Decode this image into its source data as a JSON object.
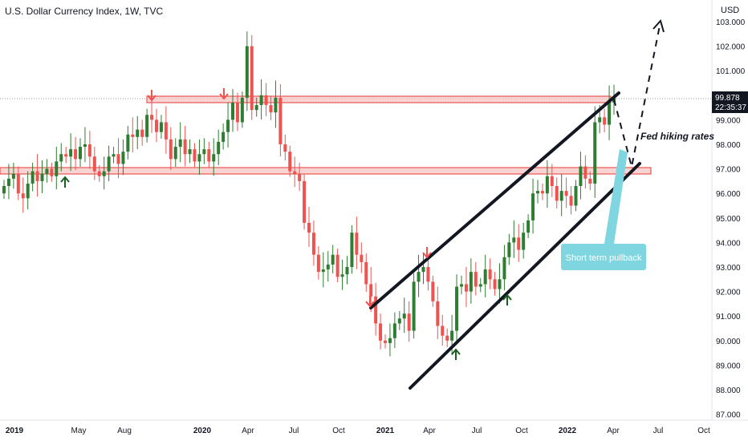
{
  "header": {
    "title": "U.S. Dollar Currency Index, 1W, TVC",
    "currency": "USD"
  },
  "price_label": {
    "value": "99.878",
    "countdown": "22:35:37"
  },
  "annotations": {
    "fed": "Fed hiking rates",
    "pullback": "Short term pullback"
  },
  "colors": {
    "up": "#2e7d32",
    "down": "#ef5350",
    "zone_fill": "#f8c4c4",
    "zone_stroke": "#e53935",
    "callout": "#7fd6e0",
    "price_tag": "#131722"
  },
  "chart_data": {
    "type": "candlestick",
    "title": "U.S. Dollar Currency Index, 1W, TVC",
    "ylabel": "USD",
    "ylim": [
      87,
      103.3
    ],
    "y_ticks": [
      "103.000",
      "102.000",
      "101.000",
      "100.000",
      "99.000",
      "98.000",
      "97.000",
      "96.000",
      "95.000",
      "94.000",
      "93.000",
      "92.000",
      "91.000",
      "90.000",
      "89.000",
      "88.000",
      "87.000"
    ],
    "x_ticks": [
      {
        "label": "2019",
        "bold": true
      },
      {
        "label": "May",
        "bold": false
      },
      {
        "label": "Aug",
        "bold": false
      },
      {
        "label": "2020",
        "bold": true
      },
      {
        "label": "Apr",
        "bold": false
      },
      {
        "label": "Jul",
        "bold": false
      },
      {
        "label": "Oct",
        "bold": false
      },
      {
        "label": "2021",
        "bold": true
      },
      {
        "label": "Apr",
        "bold": false
      },
      {
        "label": "Jul",
        "bold": false
      },
      {
        "label": "Oct",
        "bold": false
      },
      {
        "label": "2022",
        "bold": true
      },
      {
        "label": "Apr",
        "bold": false
      },
      {
        "label": "Jul",
        "bold": false
      },
      {
        "label": "Oct",
        "bold": false
      }
    ],
    "last_price": 99.878,
    "resistance_zone": [
      99.7,
      100.0
    ],
    "support_zone": [
      96.8,
      97.05
    ],
    "channel_upper": [
      [
        91.1,
        100.1
      ]
    ],
    "channel_lower": [
      [
        88.1,
        97.2
      ]
    ],
    "projected_path": [
      99.878,
      97.0,
      103.0
    ],
    "series_close": [
      96.3,
      96.6,
      96.8,
      96.0,
      95.8,
      96.4,
      96.9,
      96.5,
      96.8,
      97.0,
      96.7,
      97.3,
      97.6,
      97.5,
      97.8,
      97.4,
      97.9,
      98.0,
      97.5,
      96.9,
      96.7,
      96.9,
      97.5,
      97.6,
      97.2,
      97.7,
      98.4,
      98.3,
      98.6,
      98.3,
      99.2,
      99.0,
      98.5,
      98.9,
      98.2,
      97.4,
      97.9,
      98.2,
      97.6,
      97.8,
      97.3,
      97.6,
      97.8,
      97.3,
      97.6,
      98.1,
      98.5,
      99.0,
      99.7,
      98.9,
      99.9,
      102.0,
      99.4,
      99.6,
      100.0,
      99.6,
      99.3,
      99.9,
      98.0,
      97.7,
      96.9,
      96.8,
      96.5,
      94.8,
      94.4,
      93.5,
      92.8,
      92.9,
      93.1,
      93.5,
      92.6,
      92.7,
      93.0,
      94.4,
      93.5,
      93.2,
      92.3,
      91.8,
      90.7,
      90.0,
      89.9,
      90.1,
      90.7,
      90.9,
      91.1,
      90.4,
      92.4,
      92.8,
      93.0,
      92.4,
      91.6,
      90.6,
      90.2,
      90.0,
      90.4,
      92.2,
      92.3,
      92.0,
      92.8,
      92.2,
      92.3,
      92.9,
      92.5,
      92.1,
      92.5,
      93.4,
      94.0,
      94.2,
      93.7,
      94.4,
      94.9,
      96.0,
      96.1,
      96.0,
      96.7,
      96.3,
      95.7,
      96.1,
      95.9,
      95.5,
      96.3,
      97.1,
      96.6,
      96.4,
      98.9,
      99.1,
      98.8,
      99.7,
      99.878
    ]
  }
}
